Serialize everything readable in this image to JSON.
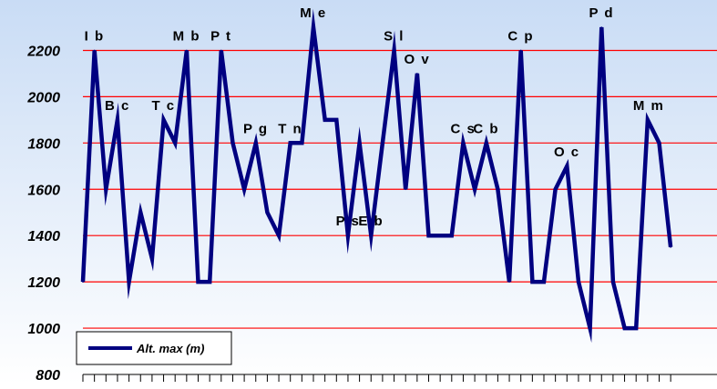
{
  "chart_data": {
    "type": "line",
    "title": "",
    "xlabel": "",
    "ylabel": "",
    "ylim": [
      800,
      2300
    ],
    "yticks": [
      800,
      1000,
      1200,
      1400,
      1600,
      1800,
      2000,
      2200
    ],
    "grid": true,
    "legend_position": "bottom-left",
    "series": [
      {
        "name": "Alt. max (m)",
        "color": "#000080",
        "values": [
          1200,
          2200,
          1600,
          1900,
          1200,
          1500,
          1300,
          1900,
          1800,
          2200,
          1200,
          1200,
          2200,
          1800,
          1600,
          1800,
          1500,
          1400,
          1800,
          1800,
          2300,
          1900,
          1900,
          1400,
          1800,
          1400,
          1800,
          2200,
          1600,
          2100,
          1400,
          1400,
          1400,
          1800,
          1600,
          1800,
          1600,
          1200,
          2200,
          1200,
          1200,
          1600,
          1700,
          1200,
          1000,
          2300,
          1200,
          1000,
          1000,
          1900,
          1800,
          1350
        ]
      }
    ],
    "annotations": [
      {
        "text": "I b",
        "index": 1
      },
      {
        "text": "B c",
        "index": 3
      },
      {
        "text": "T c",
        "index": 7
      },
      {
        "text": "M b",
        "index": 9
      },
      {
        "text": "P t",
        "index": 12
      },
      {
        "text": "P g",
        "index": 15
      },
      {
        "text": "T n",
        "index": 18
      },
      {
        "text": "M e",
        "index": 20
      },
      {
        "text": "P s",
        "index": 23
      },
      {
        "text": "E b",
        "index": 25
      },
      {
        "text": "S l",
        "index": 27
      },
      {
        "text": "O v",
        "index": 29
      },
      {
        "text": "C s",
        "index": 33
      },
      {
        "text": "C b",
        "index": 35
      },
      {
        "text": "C p",
        "index": 38
      },
      {
        "text": "O c",
        "index": 42
      },
      {
        "text": "P d",
        "index": 45
      },
      {
        "text": "M m",
        "index": 49
      }
    ]
  },
  "colors": {
    "background_top": "#c9dcf5",
    "background_bottom": "#ffffff",
    "gridline": "#ff0000",
    "series": "#000080"
  }
}
